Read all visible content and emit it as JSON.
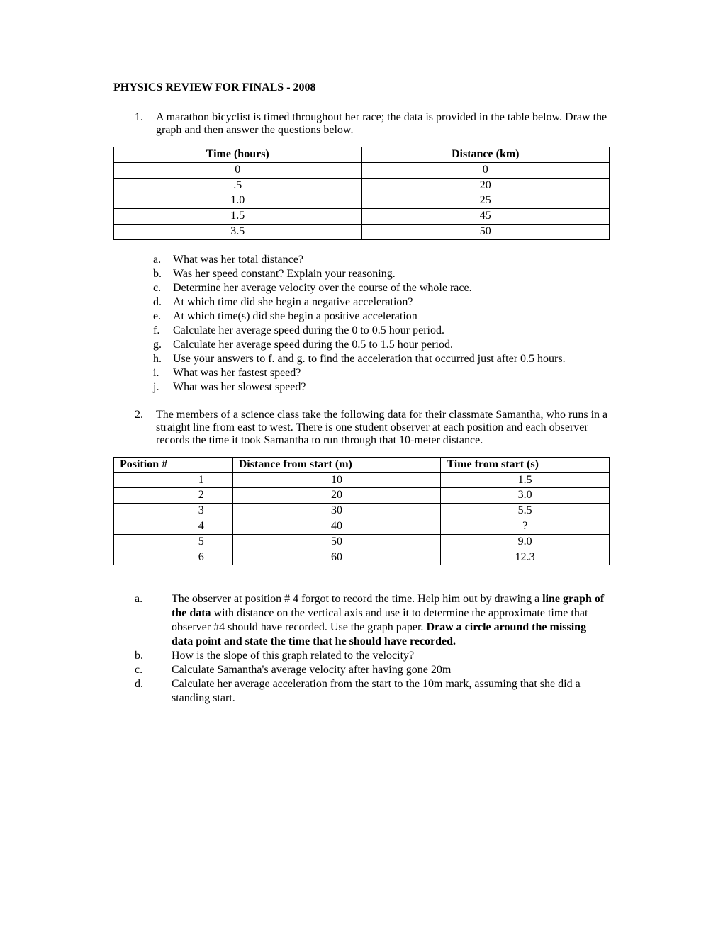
{
  "title": "PHYSICS REVIEW FOR FINALS - 2008",
  "q1": {
    "num": "1.",
    "text": "A marathon bicyclist is timed throughout her race; the data is provided in the table below.  Draw the graph and then answer the questions below.",
    "table": {
      "headers": [
        "Time (hours)",
        "Distance (km)"
      ],
      "rows": [
        [
          "0",
          "0"
        ],
        [
          ".5",
          "20"
        ],
        [
          "1.0",
          "25"
        ],
        [
          "1.5",
          "45"
        ],
        [
          "3.5",
          "50"
        ]
      ],
      "col_widths": [
        "50%",
        "50%"
      ]
    },
    "items": [
      {
        "l": "a.",
        "t": "What was her total distance?"
      },
      {
        "l": "b.",
        "t": "Was her speed constant? Explain your reasoning."
      },
      {
        "l": "c.",
        "t": "Determine her average velocity over the course of the whole race."
      },
      {
        "l": "d.",
        "t": "At which time did she begin a negative acceleration?"
      },
      {
        "l": "e.",
        "t": "At which time(s) did she begin a positive acceleration"
      },
      {
        "l": "f.",
        "t": "Calculate her average speed during the 0 to 0.5 hour period."
      },
      {
        "l": "g.",
        "t": "Calculate her average speed during the 0.5 to 1.5 hour period."
      },
      {
        "l": "h.",
        "t": "Use your answers to f. and g. to find the acceleration that occurred just after 0.5 hours."
      },
      {
        "l": "i.",
        "t": "What was her fastest speed?"
      },
      {
        "l": "j.",
        "t": "What was her slowest speed?"
      }
    ]
  },
  "q2": {
    "num": "2.",
    "text": "The members of a science class take the following data for their classmate Samantha, who runs in a straight line from east to west. There is one student observer at each position and each observer records the time it took Samantha to run through that 10-meter distance.",
    "table": {
      "headers": [
        "Position #",
        "Distance from start (m)",
        "Time from start  (s)"
      ],
      "rows": [
        [
          "1",
          "10",
          "1.5"
        ],
        [
          "2",
          "20",
          "3.0"
        ],
        [
          "3",
          "30",
          "5.5"
        ],
        [
          "4",
          "40",
          "?"
        ],
        [
          "5",
          "50",
          "9.0"
        ],
        [
          "6",
          "60",
          "12.3"
        ]
      ],
      "col_widths": [
        "24%",
        "42%",
        "34%"
      ]
    },
    "items": [
      {
        "l": "a.",
        "pre": "The observer at position # 4 forgot to record the time. Help him out by drawing a ",
        "b1": "line graph of the data",
        "mid": " with distance on the vertical axis  and use it to determine the approximate time that observer #4 should have recorded. Use the graph paper. ",
        "b2": "Draw a circle around the missing data point and state the time that he should have recorded."
      },
      {
        "l": "b.",
        "t": "How is the slope of this graph related to the velocity?"
      },
      {
        "l": "c.",
        "t": "Calculate Samantha's average velocity after having gone 20m"
      },
      {
        "l": "d.",
        "t": "Calculate her average acceleration from the start to the 10m mark, assuming that she did a standing start."
      }
    ]
  }
}
